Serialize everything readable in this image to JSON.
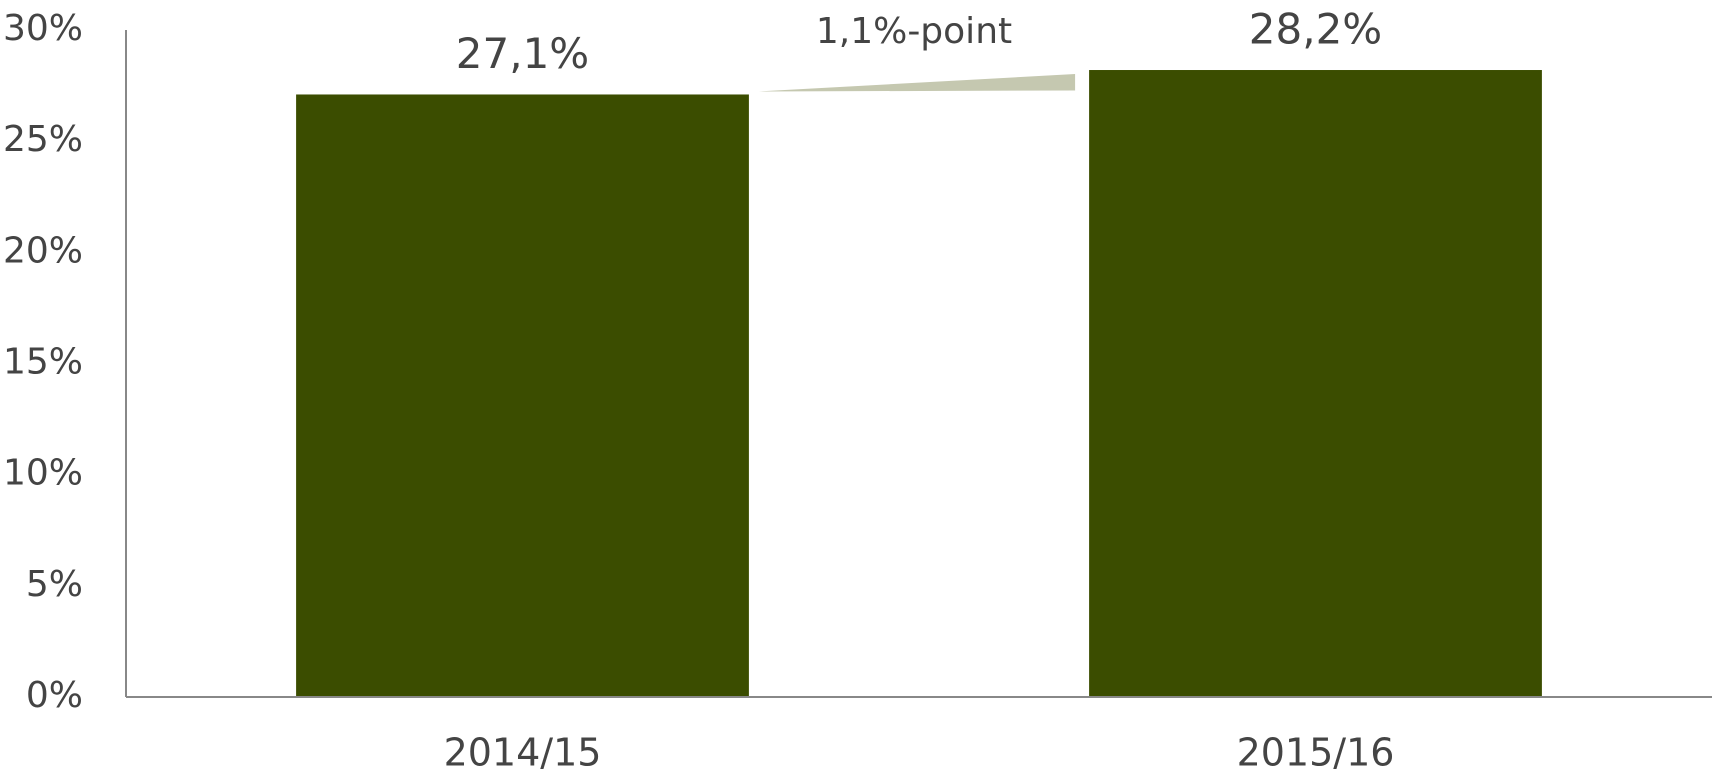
{
  "chart_data": {
    "type": "bar",
    "categories": [
      "2014/15",
      "2015/16"
    ],
    "values": [
      27.1,
      28.2
    ],
    "value_labels": [
      "27,1%",
      "28,2%"
    ],
    "color": "#3b4d00",
    "ylim": [
      0,
      30
    ],
    "yticks": [
      {
        "value": 0,
        "label": "0%"
      },
      {
        "value": 5,
        "label": "5%"
      },
      {
        "value": 10,
        "label": "10%"
      },
      {
        "value": 15,
        "label": "15%"
      },
      {
        "value": 20,
        "label": "20%"
      },
      {
        "value": 25,
        "label": "25%"
      },
      {
        "value": 30,
        "label": "30%"
      }
    ],
    "grid": false,
    "annotation": "1,1%-point"
  }
}
